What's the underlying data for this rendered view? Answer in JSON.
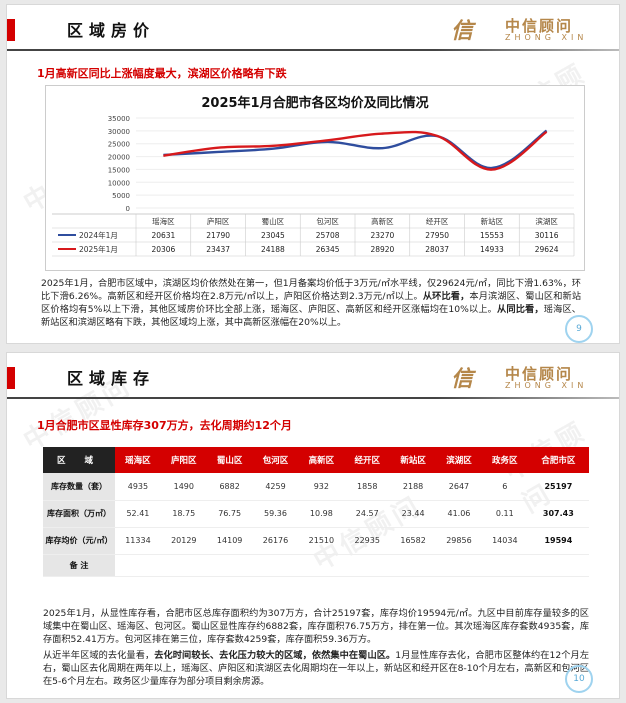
{
  "watermark_text": "中信顾问",
  "logo": {
    "mark": "信",
    "cn": "中信顾问",
    "en": "ZHONG XIN"
  },
  "slide1": {
    "title": "区域房价",
    "subhead": "1月高新区同比上涨幅度最大，滨湖区价格略有下跌",
    "page": "9",
    "para": [
      "2025年1月，合肥市区域中，滨湖区均价依然处在第一，但1月备案均价低于3万元/㎡水平线，仅29624元/㎡，同比下滑1.63%，环比下滑6.26%。高新区和经开区价格均在2.8万元/㎡以上，庐阳区价格达到2.3万元/㎡以上。",
      "从环比看，",
      "本月滨湖区、蜀山区和新站区价格均有5%以上下滑，其他区域房价环比全部上涨，瑶海区、庐阳区、高新区和经开区涨幅均在10%以上。",
      "从同比看，",
      "瑶海区、新站区和滨湖区略有下跌，其他区域均上涨，其中高新区涨幅在20%以上。"
    ]
  },
  "chart_data": {
    "type": "line",
    "title": "2025年1月合肥市各区均价及同比情况",
    "categories": [
      "瑶海区",
      "庐阳区",
      "蜀山区",
      "包河区",
      "高新区",
      "经开区",
      "新站区",
      "滨湖区"
    ],
    "series": [
      {
        "name": "2024年1月",
        "values": [
          20631,
          21790,
          23045,
          25708,
          23270,
          27950,
          15553,
          30116
        ],
        "color": "#2f4d9e"
      },
      {
        "name": "2025年1月",
        "values": [
          20306,
          23437,
          24188,
          26345,
          28920,
          28037,
          14933,
          29624
        ],
        "color": "#d7191c"
      }
    ],
    "yticks": [
      "35000",
      "30000",
      "25000",
      "20000",
      "15000",
      "10000",
      "5000",
      "0"
    ],
    "ylim": [
      0,
      35000
    ],
    "legend": "table-below"
  },
  "slide2": {
    "title": "区域库存",
    "subhead": "1月合肥市区显性库存307万方，去化周期约12个月",
    "page": "10",
    "table": {
      "header": [
        "区  域",
        "瑶海区",
        "庐阳区",
        "蜀山区",
        "包河区",
        "高新区",
        "经开区",
        "新站区",
        "滨湖区",
        "政务区",
        "合肥市区"
      ],
      "rows": [
        {
          "label": "库存数量（套）",
          "cells": [
            "4935",
            "1490",
            "6882",
            "4259",
            "932",
            "1858",
            "2188",
            "2647",
            "6",
            "25197"
          ]
        },
        {
          "label": "库存面积（万㎡）",
          "cells": [
            "52.41",
            "18.75",
            "76.75",
            "59.36",
            "10.98",
            "24.57",
            "23.44",
            "41.06",
            "0.11",
            "307.43"
          ]
        },
        {
          "label": "库存均价（元/㎡）",
          "cells": [
            "11334",
            "20129",
            "14109",
            "26176",
            "21510",
            "22935",
            "16582",
            "29856",
            "14034",
            "19594"
          ]
        },
        {
          "label": "备  注",
          "cells": [
            "",
            "",
            "",
            "",
            "",
            "",
            "",
            "",
            "",
            ""
          ]
        }
      ]
    },
    "para1": "2025年1月，从显性库存看，合肥市区总库存面积约为307万方，合计25197套，库存均价19594元/㎡。九区中目前库存量较多的区域集中在蜀山区、瑶海区、包河区。蜀山区显性库存约6882套，库存面积76.75万方，排在第一位。其次瑶海区库存套数4935套，库存面积52.41万方。包河区排在第三位，库存套数4259套，库存面积59.36万方。",
    "para2": [
      "从近半年区域的去化量看，",
      "去化时间较长、去化压力较大的区域，依然集中在蜀山区。",
      "1月显性库存去化，合肥市区整体约在12个月左右，蜀山区去化周期在两年以上，瑶海区、庐阳区和滨湖区去化周期均在一年以上，新站区和经开区在8-10个月左右，高新区和包河区在5-6个月左右。政务区少量库存为部分项目剩余房源。"
    ]
  }
}
